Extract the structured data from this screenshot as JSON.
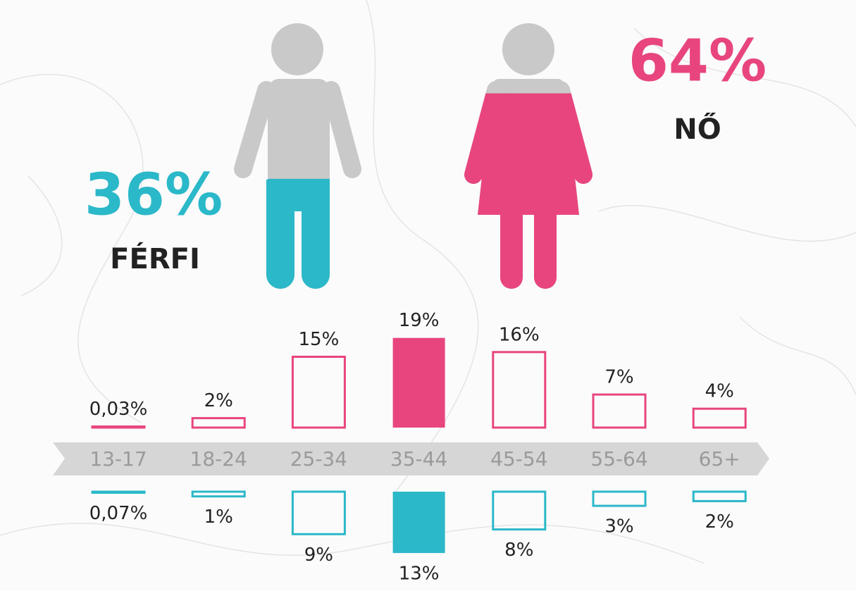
{
  "chart_data": {
    "type": "bar",
    "categories": [
      "13-17",
      "18-24",
      "25-34",
      "35-44",
      "45-54",
      "55-64",
      "65+"
    ],
    "highlight_index": 3,
    "series": [
      {
        "name": "NŐ",
        "color": "#e8457f",
        "share": 64,
        "share_label": "64%",
        "values": [
          0.03,
          2,
          15,
          19,
          16,
          7,
          4
        ],
        "value_labels": [
          "0,03%",
          "2%",
          "15%",
          "19%",
          "16%",
          "7%",
          "4%"
        ]
      },
      {
        "name": "FÉRFI",
        "color": "#2bb8c9",
        "share": 36,
        "share_label": "36%",
        "values": [
          0.07,
          1,
          9,
          13,
          8,
          3,
          2
        ],
        "value_labels": [
          "0,07%",
          "1%",
          "9%",
          "13%",
          "8%",
          "3%",
          "2%"
        ]
      }
    ]
  }
}
